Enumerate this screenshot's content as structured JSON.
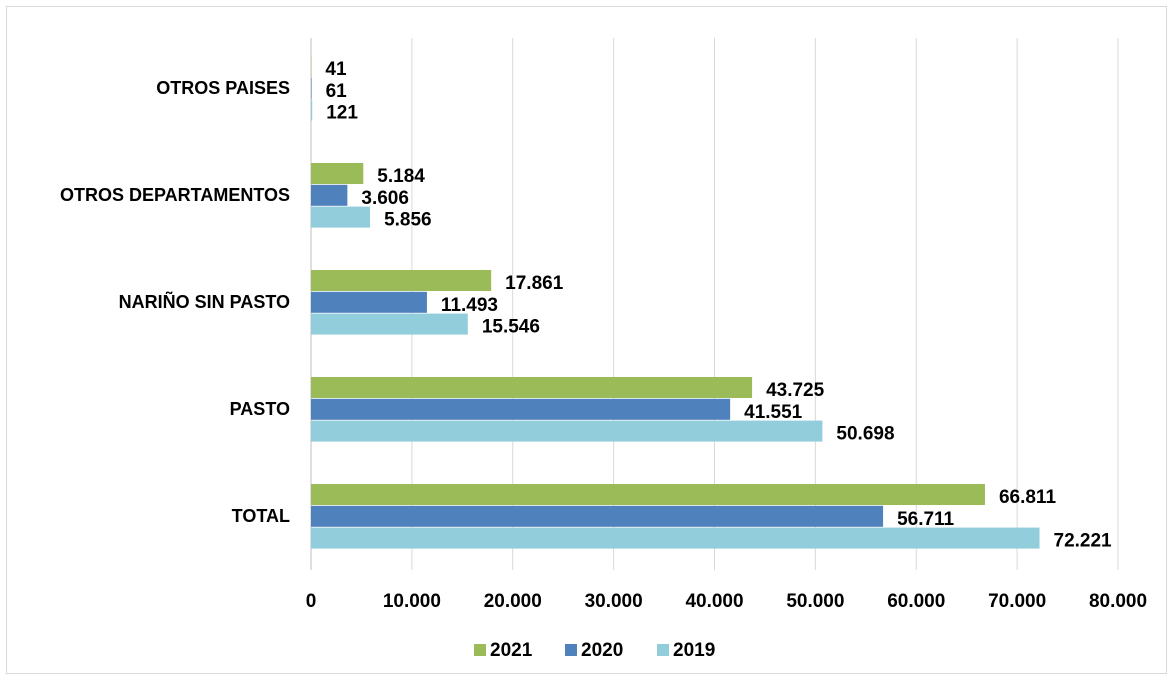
{
  "chart_data": {
    "type": "barh",
    "categories": [
      "OTROS PAISES",
      "OTROS DEPARTAMENTOS",
      "NARIÑO SIN PASTO",
      "PASTO",
      "TOTAL"
    ],
    "series": [
      {
        "name": "2021",
        "color": "#9bbb59",
        "values": [
          41,
          5184,
          17861,
          43725,
          66811
        ],
        "value_labels": [
          "41",
          "5.184",
          "17.861",
          "43.725",
          "66.811"
        ]
      },
      {
        "name": "2020",
        "color": "#4f81bd",
        "values": [
          61,
          3606,
          11493,
          41551,
          56711
        ],
        "value_labels": [
          "61",
          "3.606",
          "11.493",
          "41.551",
          "56.711"
        ]
      },
      {
        "name": "2019",
        "color": "#92cddc",
        "values": [
          121,
          5856,
          15546,
          50698,
          72221
        ],
        "value_labels": [
          "121",
          "5.856",
          "15.546",
          "50.698",
          "72.221"
        ]
      }
    ],
    "xlim": [
      0,
      80000
    ],
    "xticks": [
      0,
      {
        "value": 10000,
        "label": "10.000"
      },
      {
        "value": 20000,
        "label": "20.000"
      },
      {
        "value": 30000,
        "label": "30.000"
      },
      {
        "value": 40000,
        "label": "40.000"
      },
      {
        "value": 50000,
        "label": "50.000"
      },
      {
        "value": 60000,
        "label": "60.000"
      },
      {
        "value": 70000,
        "label": "70.000"
      },
      {
        "value": 80000,
        "label": "80.000"
      }
    ],
    "grid": true,
    "legend": "bottom"
  }
}
